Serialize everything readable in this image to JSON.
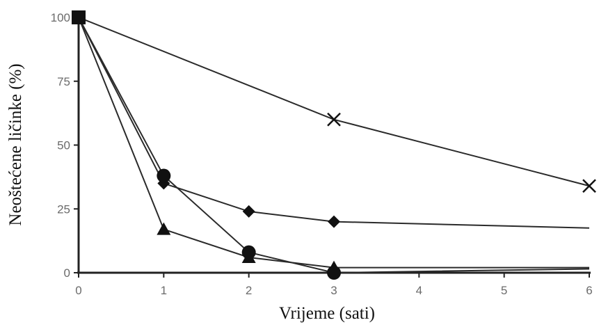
{
  "chart_data": {
    "type": "line",
    "xlabel": "Vrijeme (sati)",
    "ylabel": "Neoštećene ličinke (%)",
    "xlim": [
      0,
      6
    ],
    "ylim": [
      0,
      100
    ],
    "x_ticks": [
      0,
      1,
      2,
      3,
      4,
      5,
      6
    ],
    "y_ticks": [
      0,
      25,
      50,
      75,
      100
    ],
    "x_tick_labels": [
      "0",
      "1",
      "2",
      "3",
      "4",
      "5",
      "6"
    ],
    "y_tick_labels": [
      "0",
      "25",
      "50",
      "75",
      "100"
    ],
    "grid": false,
    "legend": "none",
    "series": [
      {
        "marker": "cross",
        "x": [
          0,
          3,
          6
        ],
        "y": [
          100,
          60,
          34
        ],
        "line_to_x": 6
      },
      {
        "marker": "diamond",
        "x": [
          0,
          1,
          2,
          3
        ],
        "y": [
          100,
          35,
          24,
          20
        ],
        "line_end": [
          6,
          17.5
        ]
      },
      {
        "marker": "circle",
        "x": [
          0,
          1,
          2,
          3
        ],
        "y": [
          100,
          38,
          8,
          0
        ],
        "line_end": [
          6,
          1.5
        ]
      },
      {
        "marker": "triangle",
        "x": [
          0,
          1,
          2,
          3
        ],
        "y": [
          100,
          17,
          6,
          2
        ],
        "line_end": [
          6,
          2
        ]
      }
    ],
    "colors": {
      "line": "#2a2a2a",
      "marker": "#111111",
      "axis": "#222222",
      "tick_label": "#6b6b6b"
    }
  }
}
